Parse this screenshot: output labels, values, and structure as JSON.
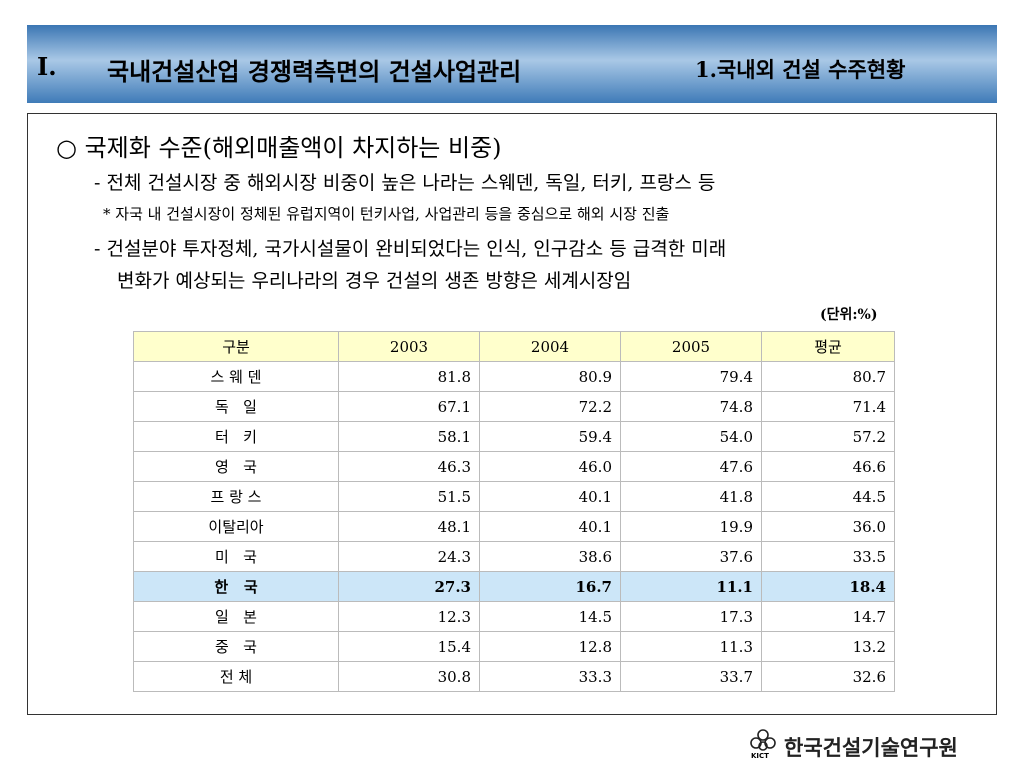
{
  "header": {
    "section": "I.",
    "title": "국내건설산업 경쟁력측면의 건설사업관리",
    "subtitle": "1.국내외 건설 수주현황"
  },
  "body": {
    "heading": "○ 국제화 수준(해외매출액이 차지하는 비중)",
    "lines": [
      "- 전체 건설시장 중 해외시장 비중이 높은 나라는 스웨덴, 독일, 터키, 프랑스 등",
      "* 자국 내 건설시장이 정체된 유럽지역이 턴키사업, 사업관리 등을 중심으로 해외 시장 진출",
      "- 건설분야 투자정체, 국가시설물이 완비되었다는 인식, 인구감소 등 급격한 미래",
      "변화가 예상되는 우리나라의 경우 건설의 생존 방향은 세계시장임"
    ]
  },
  "table": {
    "unit": "(단위:%)",
    "columns": [
      "구분",
      "2003",
      "2004",
      "2005",
      "평균"
    ],
    "rows": [
      [
        "스 웨 덴",
        "81.8",
        "80.9",
        "79.4",
        "80.7"
      ],
      [
        "독   일",
        "67.1",
        "72.2",
        "74.8",
        "71.4"
      ],
      [
        "터   키",
        "58.1",
        "59.4",
        "54.0",
        "57.2"
      ],
      [
        "영   국",
        "46.3",
        "46.0",
        "47.6",
        "46.6"
      ],
      [
        "프 랑 스",
        "51.5",
        "40.1",
        "41.8",
        "44.5"
      ],
      [
        "이탈리아",
        "48.1",
        "40.1",
        "19.9",
        "36.0"
      ],
      [
        "미   국",
        "24.3",
        "38.6",
        "37.6",
        "33.5"
      ],
      [
        "한   국",
        "27.3",
        "16.7",
        "11.1",
        "18.4"
      ],
      [
        "일   본",
        "12.3",
        "14.5",
        "17.3",
        "14.7"
      ],
      [
        "중   국",
        "15.4",
        "12.8",
        "11.3",
        "13.2"
      ],
      [
        "전 체",
        "30.8",
        "33.3",
        "33.7",
        "32.6"
      ]
    ],
    "highlight_row": 7
  },
  "footer": {
    "logo_abbr": "KICT",
    "org": "한국건설기술연구원"
  }
}
